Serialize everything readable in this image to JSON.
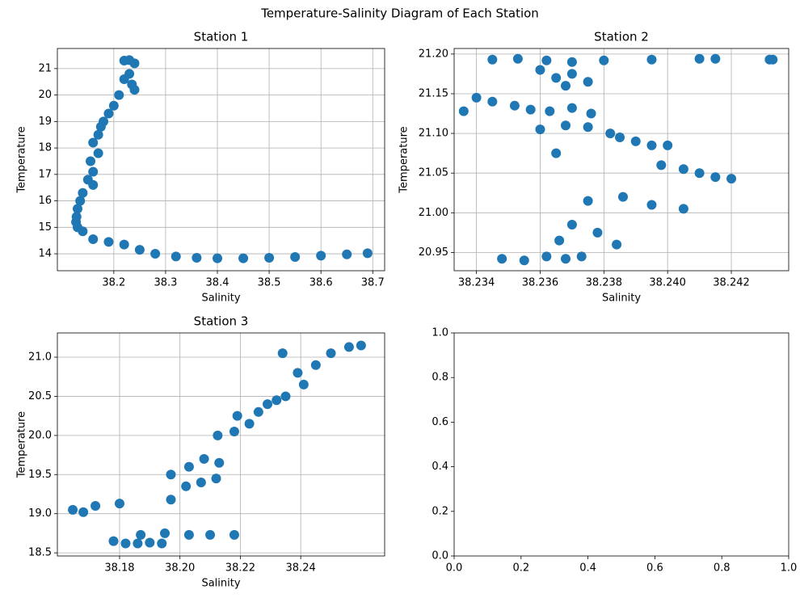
{
  "title": "Temperature-Salinity Diagram of Each Station",
  "chart_data": [
    {
      "type": "scatter",
      "title": "Station 1",
      "x_label": "Salinity",
      "y_label": "Temperature",
      "grid": true,
      "xlim": [
        38.091,
        38.723
      ],
      "ylim": [
        13.36,
        21.76
      ],
      "xticks": [
        38.2,
        38.3,
        38.4,
        38.5,
        38.6,
        38.7
      ],
      "yticks": [
        14,
        15,
        16,
        17,
        18,
        19,
        20,
        21
      ],
      "series": [
        {
          "name": "Station 1",
          "color": "#1f77b4",
          "x": [
            38.22,
            38.23,
            38.24,
            38.23,
            38.22,
            38.235,
            38.24,
            38.21,
            38.2,
            38.19,
            38.18,
            38.175,
            38.17,
            38.16,
            38.17,
            38.155,
            38.16,
            38.15,
            38.16,
            38.14,
            38.135,
            38.13,
            38.128,
            38.127,
            38.13,
            38.14,
            38.16,
            38.19,
            38.22,
            38.25,
            38.28,
            38.32,
            38.36,
            38.4,
            38.45,
            38.5,
            38.55,
            38.6,
            38.65,
            38.69
          ],
          "values": [
            21.3,
            21.32,
            21.2,
            20.8,
            20.6,
            20.4,
            20.2,
            20.0,
            19.6,
            19.3,
            19.0,
            18.8,
            18.5,
            18.2,
            17.8,
            17.5,
            17.1,
            16.8,
            16.6,
            16.3,
            16.0,
            15.7,
            15.4,
            15.2,
            15.0,
            14.85,
            14.55,
            14.45,
            14.35,
            14.15,
            14.0,
            13.9,
            13.85,
            13.83,
            13.83,
            13.85,
            13.88,
            13.93,
            13.98,
            14.02
          ]
        }
      ]
    },
    {
      "type": "scatter",
      "title": "Station 2",
      "x_label": "Salinity",
      "y_label": "Temperature",
      "grid": true,
      "xlim": [
        38.2333,
        38.2438
      ],
      "ylim": [
        20.927,
        21.207
      ],
      "xticks": [
        38.234,
        38.236,
        38.238,
        {
          "value": 38.24,
          "label": "38.240"
        },
        38.242
      ],
      "yticks": [
        {
          "value": 20.95,
          "label": "20.95"
        },
        {
          "value": 21.0,
          "label": "21.00"
        },
        21.05,
        {
          "value": 21.1,
          "label": "21.10"
        },
        21.15,
        {
          "value": 21.2,
          "label": "21.20"
        }
      ],
      "series": [
        {
          "name": "Station 2",
          "color": "#1f77b4",
          "x": [
            38.2345,
            38.2353,
            38.2362,
            38.237,
            38.238,
            38.2395,
            38.241,
            38.2415,
            38.2432,
            38.2433,
            38.236,
            38.2365,
            38.237,
            38.2375,
            38.2368,
            38.234,
            38.2345,
            38.2336,
            38.2352,
            38.2357,
            38.2363,
            38.237,
            38.2376,
            38.236,
            38.2368,
            38.2375,
            38.2382,
            38.2385,
            38.239,
            38.2395,
            38.24,
            38.2398,
            38.2405,
            38.241,
            38.2415,
            38.242,
            38.2365,
            38.2386,
            38.2395,
            38.2405,
            38.2375,
            38.237,
            38.2378,
            38.2384,
            38.2366,
            38.2348,
            38.2355,
            38.2362,
            38.2368,
            38.2373
          ],
          "values": [
            21.193,
            21.194,
            21.192,
            21.19,
            21.192,
            21.193,
            21.194,
            21.194,
            21.193,
            21.193,
            21.18,
            21.17,
            21.175,
            21.165,
            21.16,
            21.145,
            21.14,
            21.128,
            21.135,
            21.13,
            21.128,
            21.132,
            21.125,
            21.105,
            21.11,
            21.108,
            21.1,
            21.095,
            21.09,
            21.085,
            21.085,
            21.06,
            21.055,
            21.05,
            21.045,
            21.043,
            21.075,
            21.02,
            21.01,
            21.005,
            21.015,
            20.985,
            20.975,
            20.96,
            20.965,
            20.942,
            20.94,
            20.945,
            20.942,
            20.945
          ]
        }
      ]
    },
    {
      "type": "scatter",
      "title": "Station 3",
      "x_label": "Salinity",
      "y_label": "Temperature",
      "grid": true,
      "xlim": [
        38.1594,
        38.2678
      ],
      "ylim": [
        18.46,
        21.31
      ],
      "xticks": [
        38.18,
        {
          "value": 38.2,
          "label": "38.20"
        },
        38.22,
        38.24
      ],
      "yticks": [
        18.5,
        {
          "value": 19,
          "label": "19.0"
        },
        19.5,
        {
          "value": 20,
          "label": "20.0"
        },
        20.5,
        {
          "value": 21,
          "label": "21.0"
        }
      ],
      "series": [
        {
          "name": "Station 3",
          "color": "#1f77b4",
          "x": [
            38.1645,
            38.168,
            38.172,
            38.18,
            38.178,
            38.182,
            38.186,
            38.19,
            38.194,
            38.187,
            38.195,
            38.203,
            38.21,
            38.218,
            38.197,
            38.197,
            38.202,
            38.207,
            38.212,
            38.203,
            38.208,
            38.213,
            38.2125,
            38.218,
            38.223,
            38.219,
            38.226,
            38.232,
            38.229,
            38.235,
            38.241,
            38.239,
            38.245,
            38.25,
            38.256,
            38.26,
            38.234
          ],
          "values": [
            19.05,
            19.02,
            19.1,
            19.13,
            18.65,
            18.62,
            18.62,
            18.63,
            18.62,
            18.73,
            18.75,
            18.73,
            18.73,
            18.73,
            19.18,
            19.5,
            19.35,
            19.4,
            19.45,
            19.6,
            19.7,
            19.65,
            20.0,
            20.05,
            20.15,
            20.25,
            20.3,
            20.45,
            20.4,
            20.5,
            20.65,
            20.8,
            20.9,
            21.05,
            21.13,
            21.15,
            21.05
          ]
        }
      ]
    },
    {
      "type": "scatter",
      "grid": false,
      "xlim": [
        0,
        1
      ],
      "ylim": [
        0,
        1
      ],
      "xticks": [
        {
          "value": 0,
          "label": "0.0"
        },
        0.2,
        0.4,
        0.6,
        0.8,
        {
          "value": 1,
          "label": "1.0"
        }
      ],
      "yticks": [
        {
          "value": 0,
          "label": "0.0"
        },
        0.2,
        0.4,
        0.6,
        0.8,
        {
          "value": 1,
          "label": "1.0"
        }
      ],
      "series": []
    }
  ]
}
